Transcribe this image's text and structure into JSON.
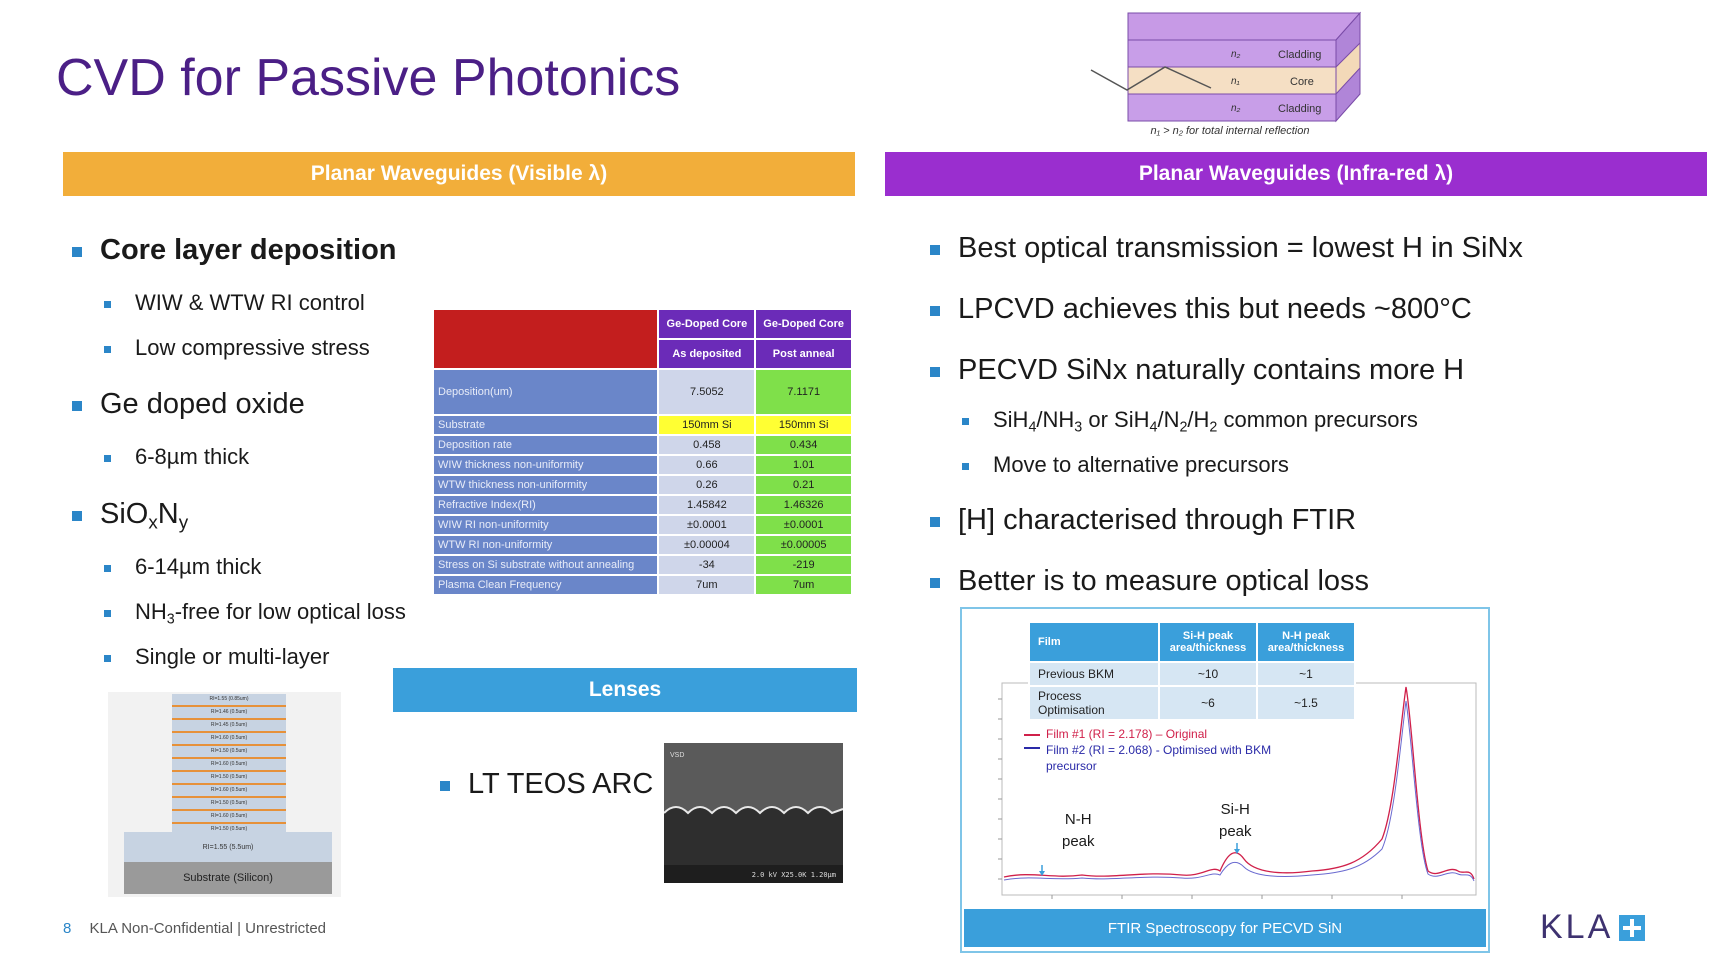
{
  "title": "CVD for Passive Photonics",
  "banners": {
    "visible": "Planar Waveguides (Visible λ)",
    "infrared": "Planar Waveguides (Infra-red λ)",
    "lenses": "Lenses"
  },
  "waveguide_diagram": {
    "n2_top": "n₂",
    "n1": "n₁",
    "n2_bottom": "n₂",
    "cladding_top": "Cladding",
    "core": "Core",
    "cladding_bottom": "Cladding",
    "caption": "n₁ > n₂ for total internal reflection"
  },
  "left_bullets": {
    "core": "Core layer deposition",
    "core_sub1": "WIW & WTW RI control",
    "core_sub2": "Low compressive stress",
    "ge": "Ge doped oxide",
    "ge_sub1": "6-8µm thick",
    "sion_main": "SiO",
    "sion_x": "x",
    "sion_n": "N",
    "sion_y": "y",
    "sion_sub1": "6-14µm thick",
    "sion_sub2_a": "NH",
    "sion_sub2_b": "3",
    "sion_sub2_c": "-free for low optical loss",
    "sion_sub3": "Single or multi-layer"
  },
  "stack_diagram": {
    "layers": [
      "RI=1.55 (0.85um)",
      "RI=1.46 (0.5um)",
      "RI=1.45 (0.5um)",
      "RI=1.60 (0.5um)",
      "RI=1.50 (0.5um)",
      "RI=1.60 (0.5um)",
      "RI=1.50 (0.5um)",
      "RI=1.60 (0.5um)",
      "RI=1.50 (0.5um)",
      "RI=1.60 (0.5um)",
      "RI=1.50 (0.5um)"
    ],
    "base_layer": "RI=1.55 (5.5um)",
    "substrate": "Substrate (Silicon)"
  },
  "core_table": {
    "col1_title": "Ge-Doped Core",
    "col1_sub": "As deposited",
    "col2_title": "Ge-Doped Core",
    "col2_sub": "Post anneal",
    "rows": [
      {
        "label": "Deposition(um)",
        "v1": "7.5052",
        "v2": "7.1171"
      },
      {
        "label": "Substrate",
        "v1": "150mm Si",
        "v2": "150mm Si"
      },
      {
        "label": "Deposition rate",
        "v1": "0.458",
        "v2": "0.434"
      },
      {
        "label": "WIW thickness non-uniformity",
        "v1": "0.66",
        "v2": "1.01"
      },
      {
        "label": "WTW thickness non-uniformity",
        "v1": "0.26",
        "v2": "0.21"
      },
      {
        "label": "Refractive Index(RI)",
        "v1": "1.45842",
        "v2": "1.46326"
      },
      {
        "label": "WIW RI non-uniformity",
        "v1": "±0.0001",
        "v2": "±0.0001"
      },
      {
        "label": "WTW RI non-uniformity",
        "v1": "±0.00004",
        "v2": "±0.00005"
      },
      {
        "label": "Stress on Si substrate without annealing",
        "v1": "-34",
        "v2": "-219"
      },
      {
        "label": "Plasma Clean Frequency",
        "v1": "7um",
        "v2": "7um"
      }
    ]
  },
  "lenses_bullet": "LT TEOS ARC",
  "sem_label": "2.0 kV X25.0K 1.20µm",
  "sem_tag": "VSD",
  "ir_bullets": {
    "b1": "Best optical transmission = lowest H in SiNx",
    "b2": "LPCVD achieves this but needs ~800°C",
    "b3": "PECVD SiNx naturally contains more H",
    "s1": {
      "a": "SiH",
      "b": "4",
      "c": "/NH",
      "d": "3",
      "e": " or SiH",
      "f": "4",
      "g": "/N",
      "h": "2",
      "i": "/H",
      "j": "2",
      "k": " common precursors"
    },
    "s2": "Move to alternative precursors",
    "b4": "[H] characterised through FTIR",
    "b5": "Better is to measure optical loss"
  },
  "ftir": {
    "table": {
      "h_film": "Film",
      "h_sih": "Si-H peak area/thickness",
      "h_nh": "N-H peak area/thickness",
      "rows": [
        {
          "film": "Previous BKM",
          "sih": "~10",
          "nh": "~1"
        },
        {
          "film": "Process Optimisation",
          "sih": "~6",
          "nh": "~1.5"
        }
      ]
    },
    "legend1": "Film #1 (RI = 2.178) – Original",
    "legend2": "Film #2 (RI = 2.068)  - Optimised with BKM",
    "legend2b": "precursor",
    "nh_label1": "N-H",
    "nh_label2": "peak",
    "sih_label1": "Si-H",
    "sih_label2": "peak",
    "caption": "FTIR Spectroscopy for PECVD SiN",
    "colors": {
      "film1": "#d0204a",
      "film2": "#2a2aa8"
    }
  },
  "footer": {
    "page": "8",
    "text": "KLA Non-Confidential | Unrestricted"
  },
  "logo": {
    "text": "KLA"
  }
}
